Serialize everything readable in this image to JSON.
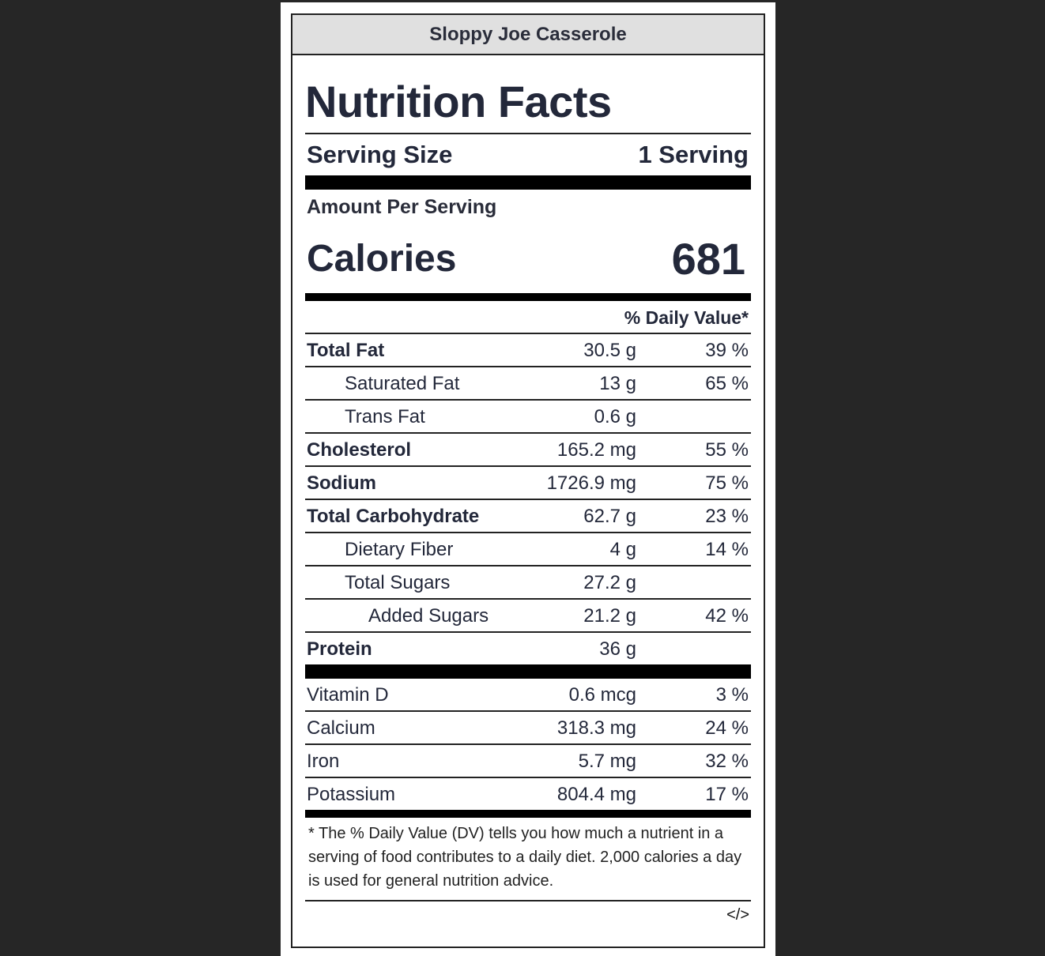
{
  "recipe_title": "Sloppy Joe Casserole",
  "heading": "Nutrition Facts",
  "serving": {
    "label": "Serving Size",
    "value": "1 Serving"
  },
  "amount_per_serving": "Amount Per Serving",
  "calories": {
    "label": "Calories",
    "value": "681"
  },
  "daily_value_header": "% Daily Value*",
  "nutrients": [
    {
      "name": "Total Fat",
      "amount": "30.5 g",
      "dv": "39 %"
    },
    {
      "name": "Saturated Fat",
      "amount": "13 g",
      "dv": "65 %"
    },
    {
      "name": "Trans Fat",
      "amount": "0.6 g",
      "dv": ""
    },
    {
      "name": "Cholesterol",
      "amount": "165.2 mg",
      "dv": "55 %"
    },
    {
      "name": "Sodium",
      "amount": "1726.9 mg",
      "dv": "75 %"
    },
    {
      "name": "Total Carbohydrate",
      "amount": "62.7 g",
      "dv": "23 %"
    },
    {
      "name": "Dietary Fiber",
      "amount": "4 g",
      "dv": "14 %"
    },
    {
      "name": "Total Sugars",
      "amount": "27.2 g",
      "dv": ""
    },
    {
      "name": "Added Sugars",
      "amount": "21.2 g",
      "dv": "42 %"
    },
    {
      "name": "Protein",
      "amount": "36 g",
      "dv": ""
    }
  ],
  "vitamins": [
    {
      "name": "Vitamin D",
      "amount": "0.6 mcg",
      "dv": "3 %"
    },
    {
      "name": "Calcium",
      "amount": "318.3 mg",
      "dv": "24 %"
    },
    {
      "name": "Iron",
      "amount": "5.7 mg",
      "dv": "32 %"
    },
    {
      "name": "Potassium",
      "amount": "804.4 mg",
      "dv": "17 %"
    }
  ],
  "footnote": "* The % Daily Value (DV) tells you how much a nutrient in a serving of food contributes to a daily diet. 2,000 calories a day is used for general nutrition advice.",
  "embed_icon": "</>"
}
